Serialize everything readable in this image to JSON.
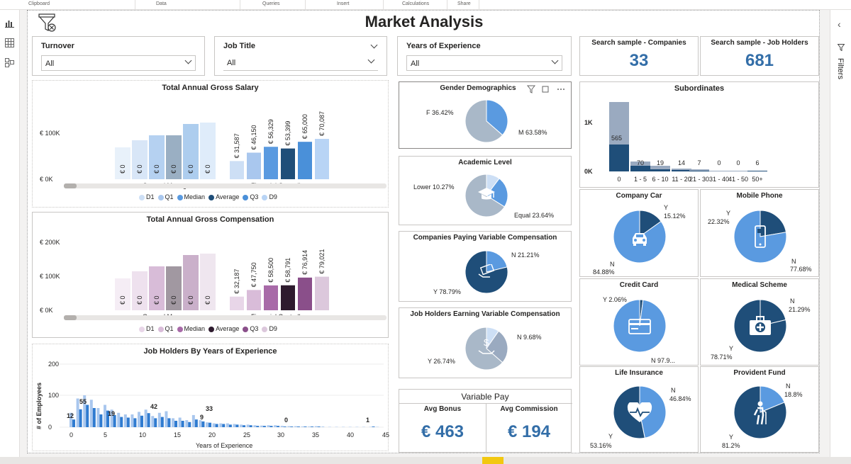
{
  "ribbon": {
    "tabs": [
      "Clipboard",
      "Data",
      "Queries",
      "Insert",
      "Calculations",
      "Share"
    ]
  },
  "title": "Market Analysis",
  "right_panel": {
    "label": "Filters"
  },
  "slicers": [
    {
      "label": "Turnover",
      "value": "All"
    },
    {
      "label": "Job Title",
      "value": "All"
    },
    {
      "label": "Years of Experience",
      "value": "All"
    }
  ],
  "kpis": {
    "companies_label": "Search sample - Companies",
    "companies_value": "33",
    "holders_label": "Search sample - Job Holders",
    "holders_value": "681"
  },
  "colors": {
    "blue_dark": "#1f4e79",
    "blue_mid": "#4a90d9",
    "blue_light": "#a9c7ee",
    "blue_pale": "#cddff5",
    "grey": "#9aaac0",
    "purple_dark": "#2e1b2e",
    "purple_mid": "#8a4f8a",
    "purple_light": "#cdb0cd"
  },
  "salary_chart": {
    "title": "Total Annual Gross Salary",
    "y_ticks": [
      "€ 100K",
      "€ 0K"
    ],
    "x_labels": [
      "General Manager",
      "Financial Controller"
    ],
    "zero_labels": [
      "€ 0",
      "€ 0",
      "€ 0",
      "€ 0",
      "€ 0",
      "€ 0"
    ],
    "fc_labels": [
      "€ 31,587",
      "€ 46,150",
      "€ 56,329",
      "€ 53,399",
      "€ 65,000",
      "€ 70,087"
    ],
    "legend": [
      "D1",
      "Q1",
      "Median",
      "Average",
      "Q3",
      "D9"
    ]
  },
  "comp_chart": {
    "title": "Total Annual Gross Compensation",
    "y_ticks": [
      "€ 200K",
      "€ 100K",
      "€ 0K"
    ],
    "x_labels": [
      "General Manager",
      "Financial Controller"
    ],
    "zero_labels": [
      "€ 0",
      "€ 0",
      "€ 0",
      "€ 0",
      "€ 0",
      "€ 0"
    ],
    "fc_labels": [
      "€ 32,187",
      "€ 47,750",
      "€ 58,500",
      "€ 58,791",
      "€ 76,914",
      "€ 79,021"
    ],
    "legend": [
      "D1",
      "Q1",
      "Median",
      "Average",
      "Q3",
      "D9"
    ]
  },
  "exp_chart": {
    "title": "Job Holders By Years of Experience",
    "y_title": "# of Employees",
    "y_ticks": [
      "200",
      "100",
      "0"
    ],
    "x_ticks": [
      "0",
      "5",
      "10",
      "15",
      "20",
      "25",
      "30",
      "35",
      "40",
      "45"
    ],
    "x_title": "Years of Experience",
    "annotations": [
      "12",
      "55",
      "19",
      "42",
      "9",
      "33",
      "0",
      "1"
    ]
  },
  "gender": {
    "title": "Gender Demographics",
    "a": "F 36.42%",
    "b": "M 63.58%"
  },
  "academic": {
    "title": "Academic Level",
    "a": "Lower 10.27%",
    "b": "Equal 23.64%"
  },
  "companies_var": {
    "title": "Companies Paying Variable Compensation",
    "a": "N 21.21%",
    "b": "Y 78.79%"
  },
  "holders_var": {
    "title": "Job Holders Earning Variable Compensation",
    "a": "N 9.68%",
    "b": "Y 26.74%"
  },
  "variable_pay": {
    "title": "Variable Pay",
    "bonus_label": "Avg Bonus",
    "bonus_value": "€ 463",
    "comm_label": "Avg Commission",
    "comm_value": "€ 194"
  },
  "subordinates": {
    "title": "Subordinates",
    "y_ticks": [
      "1K",
      "0K"
    ],
    "categories": [
      "0",
      "1 - 5",
      "6 - 10",
      "11 - 20",
      "21 - 30",
      "31 - 40",
      "41 - 50",
      "50+"
    ],
    "values": [
      "565",
      "70",
      "19",
      "14",
      "7",
      "0",
      "0",
      "6"
    ]
  },
  "benefits": [
    {
      "title": "Company Car",
      "a": "Y",
      "a2": "15.12%",
      "b": "N",
      "b2": "84.88%"
    },
    {
      "title": "Mobile Phone",
      "a": "Y",
      "a2": "22.32%",
      "b": "N",
      "b2": "77.68%"
    },
    {
      "title": "Credit Card",
      "a": "Y 2.06%",
      "b": "N 97.9..."
    },
    {
      "title": "Medical Scheme",
      "a": "N",
      "a2": "21.29%",
      "b": "Y",
      "b2": "78.71%"
    },
    {
      "title": "Life Insurance",
      "a": "N",
      "a2": "46.84%",
      "b": "Y",
      "b2": "53.16%"
    },
    {
      "title": "Provident Fund",
      "a": "N",
      "a2": "18.8%",
      "b": "Y",
      "b2": "81.2%"
    }
  ]
}
